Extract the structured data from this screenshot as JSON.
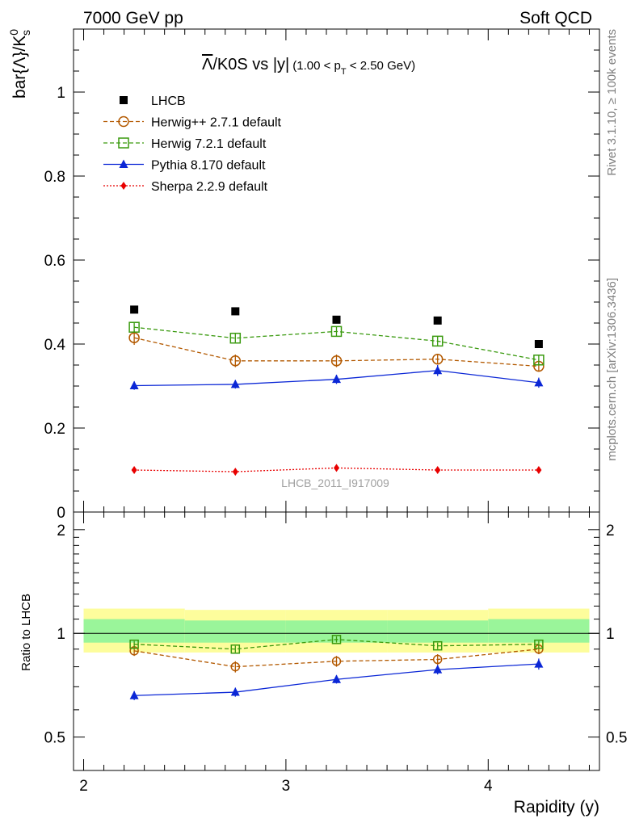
{
  "header": {
    "left": "7000 GeV pp",
    "right": "Soft QCD"
  },
  "side_text": {
    "rivet": "Rivet 3.1.10, ≥ 100k events",
    "mcplots": "mcplots.cern.ch [arXiv:1306.3436]"
  },
  "watermark": "LHCB_2011_I917009",
  "title": {
    "main_bar": "Λ",
    "main_rest": "/K0S vs |y|",
    "sub_a": "(1.00 < p",
    "sub_sub": "T",
    "sub_b": " < 2.50 GeV)"
  },
  "colors": {
    "lhcb": "#000000",
    "herwigpp": "#b35900",
    "herwig7": "#3a9a0f",
    "pythia": "#0b27d6",
    "sherpa": "#e80000",
    "band_yellow": "#fdfd9c",
    "band_green": "#9af59a"
  },
  "chart_data": [
    {
      "type": "scatter",
      "panel": "main",
      "ylabel": "bar{Λ}/K⁰s",
      "ylabel_parts": {
        "a": "bar{Λ}/K",
        "sup": "0",
        "sub": "s"
      },
      "xlim": [
        1.95,
        4.55
      ],
      "ylim": [
        0,
        1.15
      ],
      "yticks": [
        0,
        0.2,
        0.4,
        0.6,
        0.8,
        1
      ],
      "ytick_labels": [
        "0",
        "0.2",
        "0.4",
        "0.6",
        "0.8",
        "1"
      ],
      "x": [
        2.25,
        2.75,
        3.25,
        3.75,
        4.25
      ],
      "series": [
        {
          "key": "lhcb",
          "name": "LHCB",
          "marker": "square",
          "line": "none",
          "values": [
            0.482,
            0.478,
            0.458,
            0.456,
            0.4
          ],
          "errors": [
            0.0,
            0.0,
            0.0,
            0.0,
            0.0
          ]
        },
        {
          "key": "herwigpp",
          "name": "Herwig++ 2.7.1 default",
          "marker": "circle-open",
          "line": "dashed",
          "values": [
            0.415,
            0.36,
            0.36,
            0.364,
            0.347
          ],
          "errors": [
            0.017,
            0.015,
            0.015,
            0.012,
            0.013
          ]
        },
        {
          "key": "herwig7",
          "name": "Herwig 7.2.1 default",
          "marker": "square-open",
          "line": "dashed",
          "values": [
            0.44,
            0.414,
            0.43,
            0.407,
            0.362
          ],
          "errors": [
            0.011,
            0.01,
            0.012,
            0.012,
            0.011
          ]
        },
        {
          "key": "pythia",
          "name": "Pythia 8.170 default",
          "marker": "triangle",
          "line": "solid",
          "values": [
            0.301,
            0.304,
            0.316,
            0.337,
            0.308
          ],
          "errors": [
            0.01,
            0.01,
            0.011,
            0.013,
            0.012
          ]
        },
        {
          "key": "sherpa",
          "name": "Sherpa 2.2.9 default",
          "marker": "diamond",
          "line": "dotted",
          "values": [
            0.1,
            0.096,
            0.105,
            0.1,
            0.1
          ],
          "errors": [
            0.0,
            0.0,
            0.0,
            0.0,
            0.0
          ]
        }
      ]
    },
    {
      "type": "scatter",
      "panel": "ratio",
      "ylabel": "Ratio to LHCB",
      "xlabel": "Rapidity (y)",
      "xlim": [
        1.95,
        4.55
      ],
      "ylim": [
        0.4,
        2.25
      ],
      "yscale": "log",
      "yticks": [
        0.5,
        1,
        2
      ],
      "ytick_labels": [
        "0.5",
        "1",
        "2"
      ],
      "xticks": [
        2,
        3,
        4
      ],
      "xtick_labels": [
        "2",
        "3",
        "4"
      ],
      "x": [
        2.25,
        2.75,
        3.25,
        3.75,
        4.25
      ],
      "bins": [
        [
          2.0,
          2.5
        ],
        [
          2.5,
          3.0
        ],
        [
          3.0,
          3.5
        ],
        [
          3.5,
          4.0
        ],
        [
          4.0,
          4.5
        ]
      ],
      "band_outer": [
        [
          0.88,
          1.18
        ],
        [
          0.88,
          1.17
        ],
        [
          0.88,
          1.17
        ],
        [
          0.88,
          1.17
        ],
        [
          0.88,
          1.18
        ]
      ],
      "band_inner": [
        [
          0.94,
          1.1
        ],
        [
          0.94,
          1.09
        ],
        [
          0.94,
          1.09
        ],
        [
          0.94,
          1.09
        ],
        [
          0.94,
          1.1
        ]
      ],
      "series": [
        {
          "key": "herwigpp",
          "name": "Herwig++ 2.7.1 default",
          "values": [
            0.89,
            0.8,
            0.83,
            0.84,
            0.9
          ],
          "errors": [
            0.03,
            0.03,
            0.03,
            0.03,
            0.03
          ]
        },
        {
          "key": "herwig7",
          "name": "Herwig 7.2.1 default",
          "values": [
            0.93,
            0.9,
            0.96,
            0.92,
            0.93
          ],
          "errors": [
            0.02,
            0.02,
            0.02,
            0.02,
            0.02
          ]
        },
        {
          "key": "pythia",
          "name": "Pythia 8.170 default",
          "values": [
            0.66,
            0.675,
            0.735,
            0.785,
            0.815
          ],
          "errors": [
            0.02,
            0.02,
            0.02,
            0.025,
            0.03
          ]
        }
      ]
    }
  ]
}
